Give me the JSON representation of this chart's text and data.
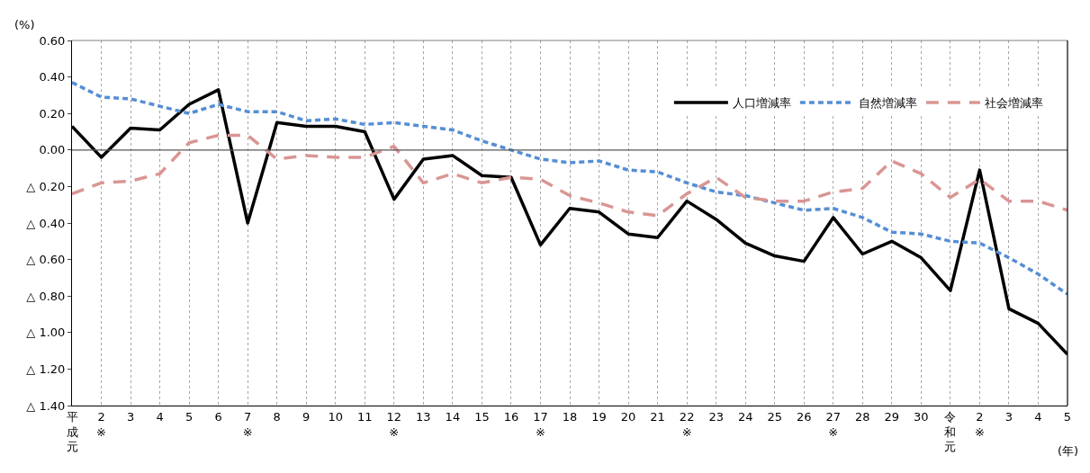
{
  "chart_data": {
    "type": "line",
    "ylabel": "(%)",
    "xlabel": "(年)",
    "categories": [
      "平成元",
      "2※",
      "3",
      "4",
      "5",
      "6",
      "7※",
      "8",
      "9",
      "10",
      "11",
      "12※",
      "13",
      "14",
      "15",
      "16",
      "17※",
      "18",
      "19",
      "20",
      "21",
      "22※",
      "23",
      "24",
      "25",
      "26",
      "27※",
      "28",
      "29",
      "30",
      "令和元",
      "2※",
      "3",
      "4",
      "5"
    ],
    "series": [
      {
        "name": "人口増減率",
        "color": "#000000",
        "line_style": "solid",
        "values": [
          0.13,
          -0.04,
          0.12,
          0.11,
          0.25,
          0.33,
          -0.4,
          0.15,
          0.13,
          0.13,
          0.1,
          -0.27,
          -0.05,
          -0.03,
          -0.14,
          -0.15,
          -0.52,
          -0.32,
          -0.34,
          -0.46,
          -0.48,
          -0.28,
          -0.38,
          -0.51,
          -0.58,
          -0.61,
          -0.37,
          -0.57,
          -0.5,
          -0.59,
          -0.77,
          -0.11,
          -0.87,
          -0.95,
          -1.12
        ]
      },
      {
        "name": "自然増減率",
        "color": "#558ed5",
        "line_style": "dotted",
        "values": [
          0.37,
          0.29,
          0.28,
          0.24,
          0.2,
          0.25,
          0.21,
          0.21,
          0.16,
          0.17,
          0.14,
          0.15,
          0.13,
          0.11,
          0.05,
          0.0,
          -0.05,
          -0.07,
          -0.06,
          -0.11,
          -0.12,
          -0.18,
          -0.23,
          -0.25,
          -0.29,
          -0.33,
          -0.32,
          -0.37,
          -0.45,
          -0.46,
          -0.5,
          -0.51,
          -0.59,
          -0.68,
          -0.79
        ]
      },
      {
        "name": "社会増減率",
        "color": "#d99694",
        "line_style": "dashed",
        "values": [
          -0.24,
          -0.18,
          -0.17,
          -0.13,
          0.04,
          0.08,
          0.08,
          -0.05,
          -0.03,
          -0.04,
          -0.04,
          0.02,
          -0.18,
          -0.13,
          -0.18,
          -0.15,
          -0.16,
          -0.25,
          -0.29,
          -0.34,
          -0.36,
          -0.24,
          -0.15,
          -0.26,
          -0.28,
          -0.28,
          -0.23,
          -0.21,
          -0.06,
          -0.13,
          -0.26,
          -0.16,
          -0.28,
          -0.28,
          -0.33
        ]
      }
    ],
    "ylim": [
      -1.4,
      0.6
    ],
    "yticks": [
      {
        "value": 0.6,
        "label": "0.60"
      },
      {
        "value": 0.4,
        "label": "0.40"
      },
      {
        "value": 0.2,
        "label": "0.20"
      },
      {
        "value": 0,
        "label": "0.00"
      },
      {
        "value": -0.2,
        "label": "△ 0.20"
      },
      {
        "value": -0.4,
        "label": "△ 0.40"
      },
      {
        "value": -0.6,
        "label": "△ 0.60"
      },
      {
        "value": -0.8,
        "label": "△ 0.80"
      },
      {
        "value": -1.0,
        "label": "△ 1.00"
      },
      {
        "value": -1.2,
        "label": "△ 1.20"
      },
      {
        "value": -1.4,
        "label": "△ 1.40"
      }
    ],
    "ref_lines": [
      {
        "axis": "y",
        "value": 0,
        "color": "#595959",
        "line_style": "solid"
      }
    ],
    "grid": "x",
    "legend": "top right",
    "marker": "none"
  }
}
